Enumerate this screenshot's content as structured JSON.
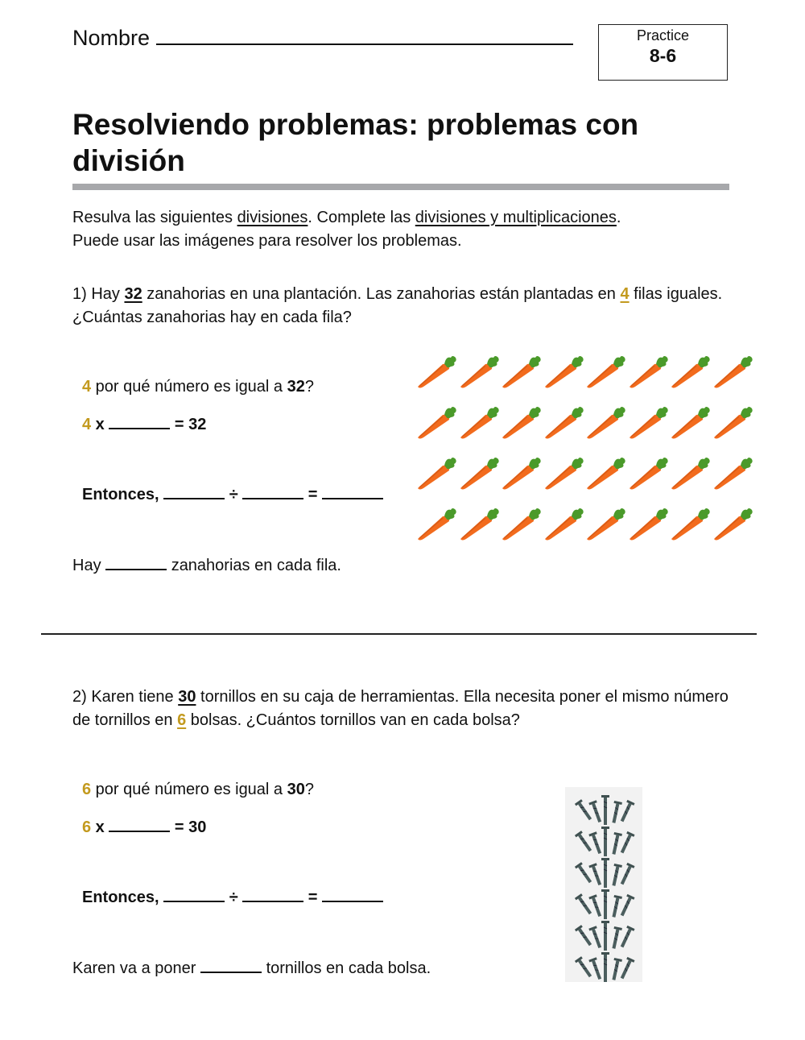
{
  "header": {
    "name_label": "Nombre",
    "practice_label": "Practice",
    "practice_number": "8-6"
  },
  "title": "Resolviendo problemas: problemas con división",
  "instructions": {
    "part1": "Resulva las siguientes ",
    "link1": "divisiones",
    "part2": ". Complete las ",
    "link2": "divisiones y multiplicaciones",
    "part3": ".",
    "line2": "Puede usar las imágenes para resolver los problemas."
  },
  "colors": {
    "accent_gold": "#c39a1f",
    "title_bar": "#a7a8ab",
    "carrot": "#f26b1d",
    "leaf": "#4a9a2a"
  },
  "problem1": {
    "prefix": "1) Hay ",
    "total": "32",
    "middle": " zanahorias en una plantación. Las zanahorias están plantadas en ",
    "groups": "4",
    "suffix": " filas iguales. ¿Cuántas zanahorias hay en cada fila?",
    "question_num": "4",
    "question_text": " por qué número es igual a ",
    "question_total": "32",
    "question_mark": "?",
    "mult_num": "4",
    "mult_x": " x ",
    "mult_result": " = 32",
    "entonces": "Entonces, ",
    "div_sign": " ÷ ",
    "eq_sign": " = ",
    "answer_prefix": "Hay ",
    "answer_suffix": " zanahorias en cada fila.",
    "image": {
      "icon": "carrot-icon",
      "rows": 4,
      "cols": 8
    }
  },
  "problem2": {
    "prefix": "2) Karen tiene ",
    "total": "30",
    "middle": " tornillos en su caja de herramientas. Ella necesita poner el mismo número de tornillos en ",
    "groups": "6",
    "suffix": " bolsas. ¿Cuántos tornillos van en cada bolsa?",
    "question_num": "6",
    "question_text": " por qué número es igual a ",
    "question_total": "30",
    "question_mark": "?",
    "mult_num": "6",
    "mult_x": " x ",
    "mult_result": " = 30",
    "entonces": "Entonces, ",
    "div_sign": " ÷ ",
    "eq_sign": " = ",
    "answer_prefix": "Karen va a poner ",
    "answer_suffix": " tornillos en cada bolsa.",
    "image": {
      "icon": "screw-icon",
      "rows": 6,
      "cols": 5
    }
  }
}
